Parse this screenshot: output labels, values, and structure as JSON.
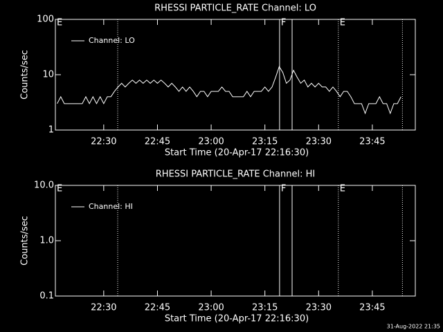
{
  "chart_data": [
    {
      "type": "line",
      "title": "RHESSI PARTICLE_RATE Channel: LO",
      "xlabel": "Start Time (20-Apr-17 22:16:30)",
      "ylabel": "Counts/sec",
      "log_y": true,
      "ylim": [
        1,
        100
      ],
      "yticks": [
        1,
        10,
        100
      ],
      "xlim": [
        1336.5,
        1437
      ],
      "xticks": [
        {
          "value": 1350,
          "label": "22:30"
        },
        {
          "value": 1365,
          "label": "22:45"
        },
        {
          "value": 1380,
          "label": "23:00"
        },
        {
          "value": 1395,
          "label": "23:15"
        },
        {
          "value": 1410,
          "label": "23:30"
        },
        {
          "value": 1425,
          "label": "23:45"
        }
      ],
      "vlines": [
        {
          "x": 1353.9,
          "style": "dotted"
        },
        {
          "x": 1399.1,
          "style": "solid"
        },
        {
          "x": 1402.6,
          "style": "solid"
        },
        {
          "x": 1415.5,
          "style": "dotted"
        },
        {
          "x": 1433.4,
          "style": "dotted"
        }
      ],
      "annotations": [
        {
          "text": "E",
          "x": 1336.5
        },
        {
          "text": "F",
          "x": 1399.1
        },
        {
          "text": "E",
          "x": 1415.5
        }
      ],
      "legend": "upper left",
      "x": [
        1337,
        1338,
        1339,
        1340,
        1341,
        1342,
        1343,
        1344,
        1345,
        1346,
        1347,
        1348,
        1349,
        1350,
        1351,
        1352,
        1353,
        1354,
        1355,
        1356,
        1357,
        1358,
        1359,
        1360,
        1361,
        1362,
        1363,
        1364,
        1365,
        1366,
        1367,
        1368,
        1369,
        1370,
        1371,
        1372,
        1373,
        1374,
        1375,
        1376,
        1377,
        1378,
        1379,
        1380,
        1381,
        1382,
        1383,
        1384,
        1385,
        1386,
        1387,
        1388,
        1389,
        1390,
        1391,
        1392,
        1393,
        1394,
        1395,
        1396,
        1397,
        1398,
        1399,
        1400,
        1401,
        1402,
        1403,
        1404,
        1405,
        1406,
        1407,
        1408,
        1409,
        1410,
        1411,
        1412,
        1413,
        1414,
        1415,
        1416,
        1417,
        1418,
        1419,
        1420,
        1421,
        1422,
        1423,
        1424,
        1425,
        1426,
        1427,
        1428,
        1429,
        1430,
        1431,
        1432,
        1433
      ],
      "series": [
        {
          "name": "Channel: LO",
          "color": "#ffffff",
          "values": [
            3,
            4,
            3,
            3,
            3,
            3,
            3,
            3,
            4,
            3,
            4,
            3,
            4,
            3,
            4,
            4,
            5,
            6,
            7,
            6,
            7,
            8,
            7,
            8,
            7,
            8,
            7,
            8,
            7,
            8,
            7,
            6,
            7,
            6,
            5,
            6,
            5,
            6,
            5,
            4,
            5,
            5,
            4,
            5,
            5,
            5,
            6,
            5,
            5,
            4,
            4,
            4,
            4,
            5,
            4,
            5,
            5,
            5,
            6,
            5,
            6,
            9,
            14,
            11,
            7,
            8,
            12,
            9,
            7,
            8,
            6,
            7,
            6,
            7,
            6,
            6,
            5,
            6,
            5,
            4,
            5,
            5,
            4,
            3,
            3,
            3,
            2,
            3,
            3,
            3,
            4,
            3,
            3,
            2,
            3,
            3,
            4
          ]
        }
      ]
    },
    {
      "type": "line",
      "title": "RHESSI PARTICLE_RATE Channel: HI",
      "xlabel": "Start Time (20-Apr-17 22:16:30)",
      "ylabel": "Counts/sec",
      "log_y": true,
      "ylim": [
        0.1,
        10
      ],
      "yticks": [
        {
          "value": 0.1,
          "label": "0.1"
        },
        {
          "value": 1,
          "label": "1.0"
        },
        {
          "value": 10,
          "label": "10.0"
        }
      ],
      "xlim": [
        1336.5,
        1437
      ],
      "xticks": [
        {
          "value": 1350,
          "label": "22:30"
        },
        {
          "value": 1365,
          "label": "22:45"
        },
        {
          "value": 1380,
          "label": "23:00"
        },
        {
          "value": 1395,
          "label": "23:15"
        },
        {
          "value": 1410,
          "label": "23:30"
        },
        {
          "value": 1425,
          "label": "23:45"
        }
      ],
      "vlines": [
        {
          "x": 1353.9,
          "style": "dotted"
        },
        {
          "x": 1399.1,
          "style": "solid"
        },
        {
          "x": 1402.6,
          "style": "solid"
        },
        {
          "x": 1415.5,
          "style": "dotted"
        },
        {
          "x": 1433.4,
          "style": "dotted"
        }
      ],
      "annotations": [
        {
          "text": "E",
          "x": 1336.5
        },
        {
          "text": "F",
          "x": 1399.1
        },
        {
          "text": "E",
          "x": 1415.5
        }
      ],
      "legend": "upper left",
      "x": [],
      "series": [
        {
          "name": "Channel: HI",
          "color": "#ffffff",
          "values": []
        }
      ]
    }
  ],
  "footer": "31-Aug-2022 21:35"
}
